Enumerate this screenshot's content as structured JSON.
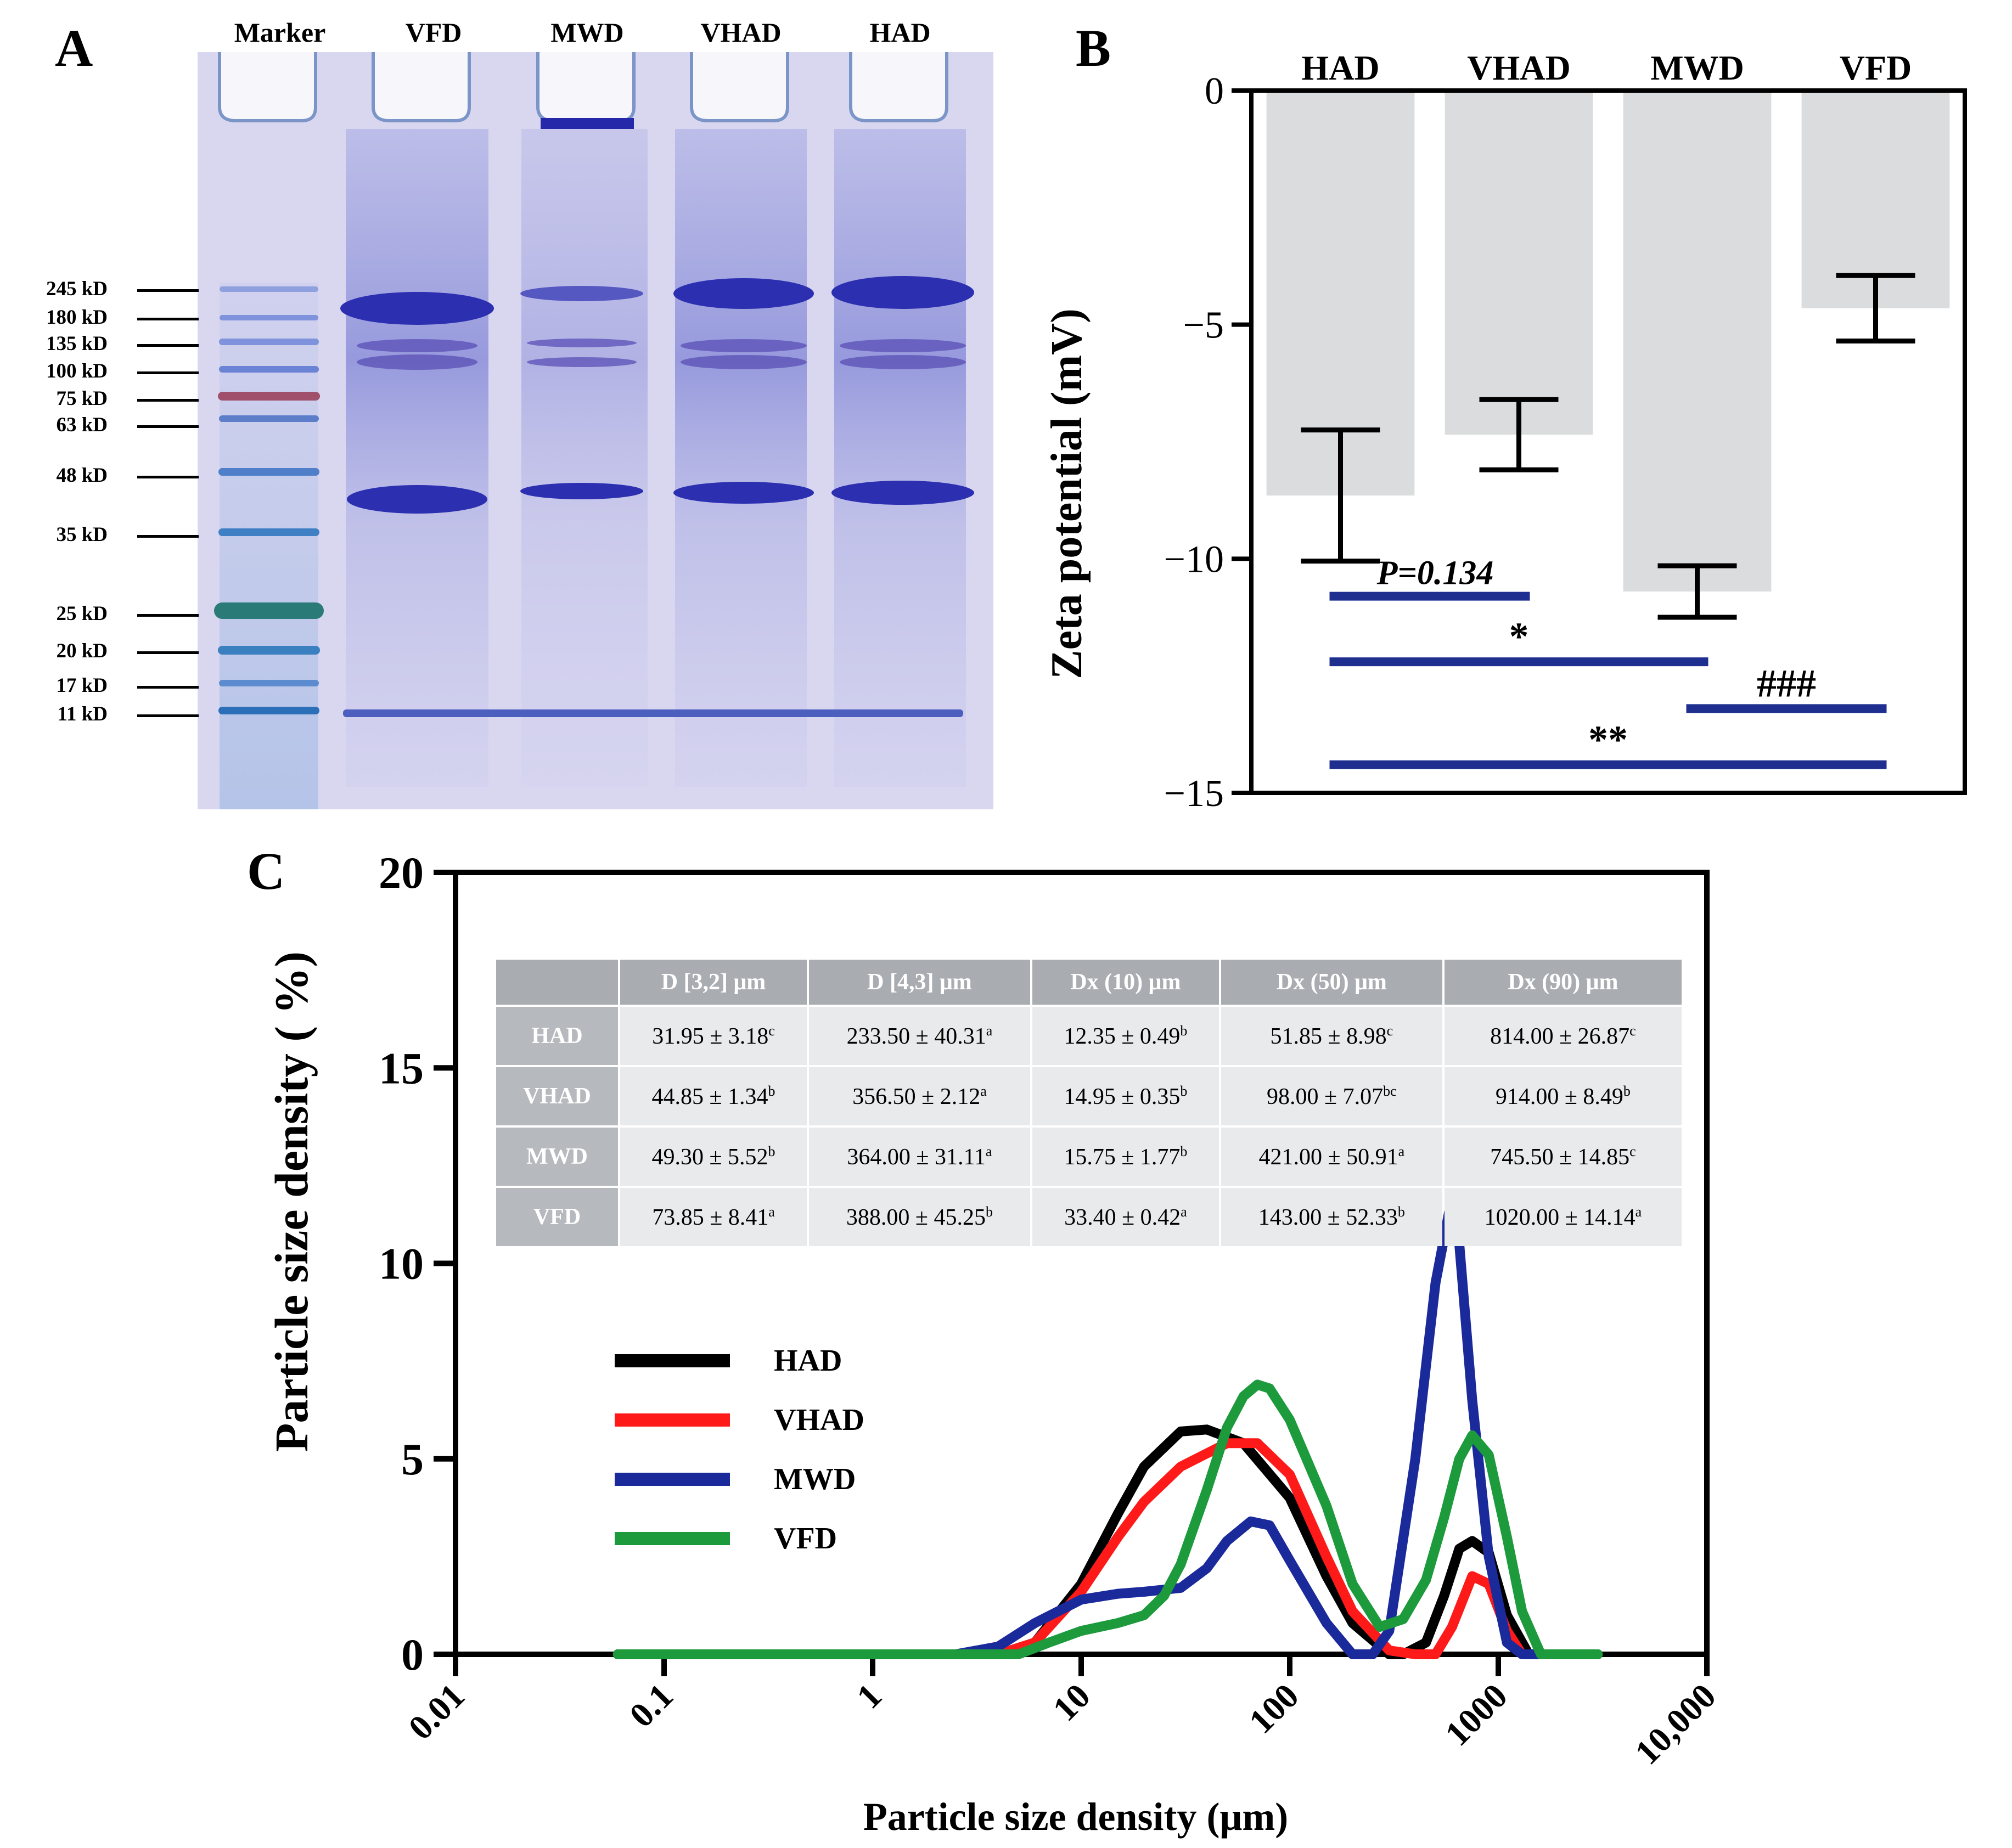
{
  "panels": {
    "a": "A",
    "b": "B",
    "c": "C"
  },
  "gel": {
    "lanes": [
      "Marker",
      "VFD",
      "MWD",
      "VHAD",
      "HAD"
    ],
    "markers": [
      "245 kD",
      "180 kD",
      "135 kD",
      "100 kD",
      "75 kD",
      "63 kD",
      "48 kD",
      "35 kD",
      "25 kD",
      "20 kD",
      "17 kD",
      "11 kD"
    ],
    "colors": {
      "gel_bg": "#d7d5ef",
      "band": "#2b2fb0",
      "marker_red": "#a0506a",
      "marker_teal": "#2a7a78"
    }
  },
  "chart_data": [
    {
      "type": "bar",
      "title": "",
      "ylabel": "Zeta potential (mV)",
      "xlabel": "",
      "ylim": [
        -15,
        0
      ],
      "yticks": [
        0,
        -5,
        -10,
        -15
      ],
      "ytick_labels": [
        "0",
        "−5",
        "−10",
        "−15"
      ],
      "categories": [
        "HAD",
        "VHAD",
        "MWD",
        "VFD"
      ],
      "values": [
        -8.65,
        -7.35,
        -10.7,
        -4.65
      ],
      "error": [
        1.4,
        0.75,
        0.55,
        0.7
      ],
      "bar_color": "#dadcdd",
      "significance": [
        {
          "from": "HAD",
          "to": "VHAD",
          "label": "P=0.134",
          "y": -10.8
        },
        {
          "from": "HAD",
          "to": "MWD",
          "label": "*",
          "y": -12.2
        },
        {
          "from": "MWD",
          "to": "VFD",
          "label": "###",
          "y": -13.2
        },
        {
          "from": "HAD",
          "to": "VFD",
          "label": "**",
          "y": -14.4
        }
      ],
      "sig_color": "#1f2f8f"
    },
    {
      "type": "line",
      "xscale": "log",
      "xlabel": "Particle size density (μm)",
      "ylabel": "Particle size density ( %)",
      "xlim": [
        0.01,
        10000
      ],
      "ylim": [
        0,
        20
      ],
      "xticks": [
        0.01,
        0.1,
        1,
        10,
        100,
        1000,
        10000
      ],
      "xtick_labels": [
        "0.01",
        "0.1",
        "1",
        "10",
        "100",
        "1000",
        "10,000"
      ],
      "yticks": [
        0,
        5,
        10,
        15,
        20
      ],
      "ytick_labels": [
        "0",
        "5",
        "10",
        "15",
        "20"
      ],
      "series": [
        {
          "name": "HAD",
          "color": "#000000",
          "x": [
            0.06,
            4,
            6,
            10,
            15,
            20,
            30,
            40,
            60,
            100,
            150,
            200,
            300,
            350,
            450,
            550,
            650,
            750,
            900,
            1100,
            1400,
            3000
          ],
          "y": [
            0,
            0,
            0.3,
            1.8,
            3.6,
            4.8,
            5.7,
            5.75,
            5.4,
            4.0,
            2.0,
            0.8,
            0,
            0,
            0.3,
            1.5,
            2.7,
            2.9,
            2.6,
            1.0,
            0,
            0
          ]
        },
        {
          "name": "VHAD",
          "color": "#ff1a1a",
          "x": [
            0.06,
            4,
            6,
            10,
            15,
            20,
            30,
            50,
            70,
            100,
            150,
            200,
            300,
            400,
            500,
            600,
            750,
            900,
            1100,
            1300,
            1500,
            3000
          ],
          "y": [
            0,
            0,
            0.3,
            1.6,
            3.0,
            3.9,
            4.8,
            5.4,
            5.4,
            4.6,
            2.5,
            1.1,
            0.1,
            0,
            0,
            0.7,
            2.0,
            1.8,
            0.6,
            0,
            0,
            0
          ]
        },
        {
          "name": "MWD",
          "color": "#1a2a9a",
          "x": [
            0.06,
            2.5,
            4,
            6,
            10,
            15,
            20,
            30,
            40,
            50,
            65,
            80,
            100,
            150,
            200,
            250,
            300,
            400,
            500,
            580,
            650,
            750,
            900,
            1100,
            1300,
            3000
          ],
          "y": [
            0,
            0,
            0.2,
            0.8,
            1.4,
            1.55,
            1.6,
            1.7,
            2.2,
            2.9,
            3.4,
            3.3,
            2.4,
            0.8,
            0,
            0,
            0.6,
            5.0,
            9.5,
            11.3,
            10.5,
            6.5,
            2.5,
            0.3,
            0,
            0
          ]
        },
        {
          "name": "VFD",
          "color": "#1c9a3c",
          "x": [
            0.06,
            5,
            7,
            10,
            15,
            20,
            25,
            30,
            40,
            50,
            60,
            70,
            80,
            100,
            150,
            200,
            270,
            350,
            450,
            550,
            650,
            750,
            900,
            1100,
            1300,
            1600,
            3000
          ],
          "y": [
            0,
            0,
            0.3,
            0.6,
            0.8,
            1.0,
            1.5,
            2.3,
            4.2,
            5.8,
            6.6,
            6.9,
            6.8,
            6.0,
            3.8,
            1.8,
            0.7,
            0.9,
            1.9,
            3.5,
            5.0,
            5.6,
            5.1,
            3.0,
            1.1,
            0,
            0
          ]
        }
      ],
      "table": {
        "columns": [
          "",
          "D [3,2] μm",
          "D [4,3] μm",
          "Dx (10) μm",
          "Dx (50) μm",
          "Dx (90) μm"
        ],
        "rows": [
          {
            "label": "HAD",
            "cells": [
              [
                "31.95 ± 3.18",
                "c"
              ],
              [
                "233.50 ± 40.31",
                "a"
              ],
              [
                "12.35 ± 0.49",
                "b"
              ],
              [
                "51.85 ± 8.98",
                "c"
              ],
              [
                "814.00 ± 26.87",
                "c"
              ]
            ]
          },
          {
            "label": "VHAD",
            "cells": [
              [
                "44.85 ± 1.34",
                "b"
              ],
              [
                "356.50 ± 2.12",
                "a"
              ],
              [
                "14.95 ± 0.35",
                "b"
              ],
              [
                "98.00 ± 7.07",
                "bc"
              ],
              [
                "914.00 ± 8.49",
                "b"
              ]
            ]
          },
          {
            "label": "MWD",
            "cells": [
              [
                "49.30 ± 5.52",
                "b"
              ],
              [
                "364.00 ± 31.11",
                "a"
              ],
              [
                "15.75 ± 1.77",
                "b"
              ],
              [
                "421.00 ± 50.91",
                "a"
              ],
              [
                "745.50 ± 14.85",
                "c"
              ]
            ]
          },
          {
            "label": "VFD",
            "cells": [
              [
                "73.85 ± 8.41",
                "a"
              ],
              [
                "388.00 ± 45.25",
                "b"
              ],
              [
                "33.40 ± 0.42",
                "a"
              ],
              [
                "143.00 ± 52.33",
                "b"
              ],
              [
                "1020.00 ± 14.14",
                "a"
              ]
            ]
          }
        ],
        "colors": {
          "header": "#a9acb1",
          "row_label": "#b6b9bd",
          "cell": "#e9eaeb"
        }
      }
    }
  ]
}
